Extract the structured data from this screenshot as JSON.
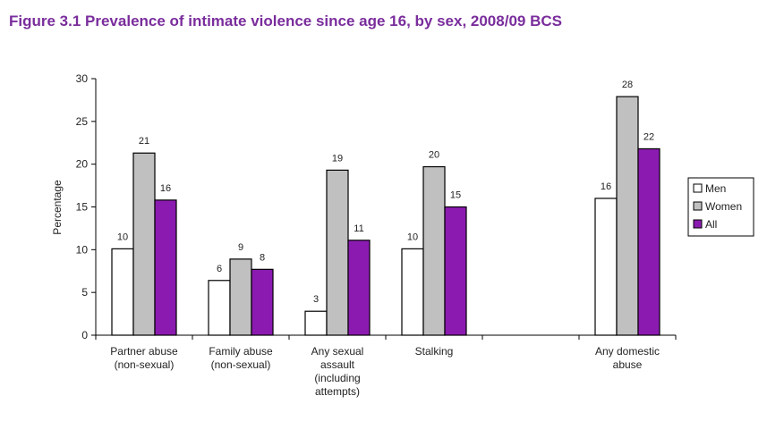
{
  "chart_data": {
    "type": "bar",
    "title": "Figure 3.1 Prevalence of intimate violence since age 16, by sex, 2008/09 BCS",
    "ylabel": "Percentage",
    "xlabel": "",
    "ylim": [
      0,
      30
    ],
    "yticks": [
      0,
      5,
      10,
      15,
      20,
      25,
      30
    ],
    "categories": [
      [
        "Partner abuse",
        "(non-sexual)"
      ],
      [
        "Family abuse",
        "(non-sexual)"
      ],
      [
        "Any sexual",
        "assault",
        "(including",
        "attempts)"
      ],
      [
        "Stalking"
      ],
      [],
      [
        "Any domestic",
        "abuse"
      ]
    ],
    "series": [
      {
        "name": "Men",
        "color": "#ffffff",
        "values": [
          10.1,
          6.4,
          2.8,
          10.1,
          null,
          16.0
        ],
        "labels": [
          "10",
          "6",
          "3",
          "10",
          "",
          "16"
        ]
      },
      {
        "name": "Women",
        "color": "#c0c0c0",
        "values": [
          21.3,
          8.9,
          19.3,
          19.7,
          null,
          27.9
        ],
        "labels": [
          "21",
          "9",
          "19",
          "20",
          "",
          "28"
        ]
      },
      {
        "name": "All",
        "color": "#8b1bb0",
        "values": [
          15.8,
          7.7,
          11.1,
          15.0,
          null,
          21.8
        ],
        "labels": [
          "16",
          "8",
          "11",
          "15",
          "",
          "22"
        ]
      }
    ],
    "legend": "right"
  }
}
